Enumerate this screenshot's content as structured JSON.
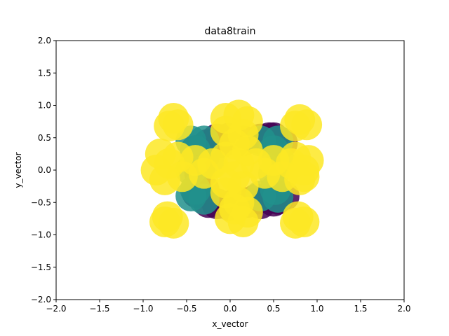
{
  "chart_data": {
    "type": "scatter",
    "title": "data8train",
    "xlabel": "x_vector",
    "ylabel": "y_vector",
    "xlim": [
      -2.0,
      2.0
    ],
    "ylim": [
      -2.0,
      2.0
    ],
    "xticks": [
      "−2.0",
      "−1.5",
      "−1.0",
      "−0.5",
      "0.0",
      "0.5",
      "1.0",
      "1.5",
      "2.0"
    ],
    "yticks": [
      "−2.0",
      "−1.5",
      "−1.0",
      "−0.5",
      "0.0",
      "0.5",
      "1.0",
      "1.5",
      "2.0"
    ],
    "grid": false,
    "colors": {
      "class_0": "#440154",
      "class_1": "#21918c",
      "class_2": "#fde725"
    },
    "series": [
      {
        "class": 0,
        "color": "#440154",
        "points": [
          [
            -0.25,
            0.4
          ],
          [
            -0.15,
            0.48
          ],
          [
            0.0,
            0.5
          ],
          [
            0.15,
            0.45
          ],
          [
            0.35,
            0.48
          ],
          [
            0.5,
            0.5
          ],
          [
            0.6,
            0.42
          ],
          [
            -0.4,
            0.3
          ],
          [
            -0.3,
            0.2
          ],
          [
            -0.35,
            -0.05
          ],
          [
            -0.3,
            -0.3
          ],
          [
            -0.25,
            -0.5
          ],
          [
            -0.15,
            -0.52
          ],
          [
            0.0,
            -0.55
          ],
          [
            0.2,
            -0.5
          ],
          [
            0.35,
            -0.52
          ],
          [
            0.5,
            -0.48
          ],
          [
            0.62,
            -0.4
          ],
          [
            0.3,
            -0.45
          ],
          [
            -0.1,
            0.42
          ],
          [
            0.45,
            0.5
          ],
          [
            -0.38,
            -0.35
          ],
          [
            0.1,
            -0.5
          ],
          [
            0.55,
            -0.45
          ]
        ]
      },
      {
        "class": 1,
        "color": "#21918c",
        "points": [
          [
            -0.45,
            0.45
          ],
          [
            -0.3,
            0.45
          ],
          [
            0.35,
            0.45
          ],
          [
            0.55,
            0.45
          ],
          [
            -0.45,
            -0.4
          ],
          [
            -0.3,
            -0.45
          ],
          [
            0.35,
            -0.4
          ],
          [
            0.55,
            -0.42
          ],
          [
            -0.4,
            0.3
          ],
          [
            0.5,
            0.3
          ],
          [
            -0.4,
            -0.3
          ],
          [
            0.52,
            -0.3
          ],
          [
            -0.22,
            0.1
          ],
          [
            0.5,
            -0.05
          ],
          [
            -0.45,
            0.0
          ],
          [
            0.58,
            0.12
          ]
        ]
      },
      {
        "class": 2,
        "color": "#fde725",
        "points": [
          [
            -0.05,
            0.8
          ],
          [
            0.1,
            0.85
          ],
          [
            0.2,
            0.75
          ],
          [
            -0.05,
            0.6
          ],
          [
            0.15,
            0.55
          ],
          [
            0.05,
            0.4
          ],
          [
            0.2,
            0.3
          ],
          [
            -0.05,
            0.2
          ],
          [
            0.1,
            0.1
          ],
          [
            0.05,
            -0.1
          ],
          [
            0.15,
            -0.25
          ],
          [
            -0.05,
            -0.35
          ],
          [
            0.1,
            -0.5
          ],
          [
            0.2,
            -0.65
          ],
          [
            0.0,
            -0.75
          ],
          [
            0.15,
            -0.8
          ],
          [
            0.05,
            -0.6
          ],
          [
            -0.05,
            -0.2
          ],
          [
            -0.8,
            0.25
          ],
          [
            -0.7,
            0.1
          ],
          [
            -0.85,
            0.0
          ],
          [
            -0.75,
            -0.15
          ],
          [
            -0.6,
            0.2
          ],
          [
            -0.55,
            -0.1
          ],
          [
            -0.4,
            0.15
          ],
          [
            -0.3,
            -0.05
          ],
          [
            -0.2,
            0.1
          ],
          [
            0.3,
            0.1
          ],
          [
            0.4,
            -0.05
          ],
          [
            0.5,
            0.15
          ],
          [
            0.6,
            -0.1
          ],
          [
            0.75,
            0.2
          ],
          [
            0.85,
            0.0
          ],
          [
            0.8,
            -0.15
          ],
          [
            0.7,
            0.1
          ],
          [
            0.9,
            0.15
          ],
          [
            0.85,
            -0.1
          ],
          [
            -0.65,
            0.8
          ],
          [
            -0.7,
            0.68
          ],
          [
            -0.6,
            0.7
          ],
          [
            0.8,
            0.78
          ],
          [
            0.88,
            0.7
          ],
          [
            0.75,
            0.68
          ],
          [
            -0.72,
            -0.72
          ],
          [
            -0.65,
            -0.82
          ],
          [
            -0.75,
            -0.8
          ],
          [
            0.78,
            -0.72
          ],
          [
            0.85,
            -0.8
          ],
          [
            0.75,
            -0.82
          ]
        ]
      }
    ]
  }
}
